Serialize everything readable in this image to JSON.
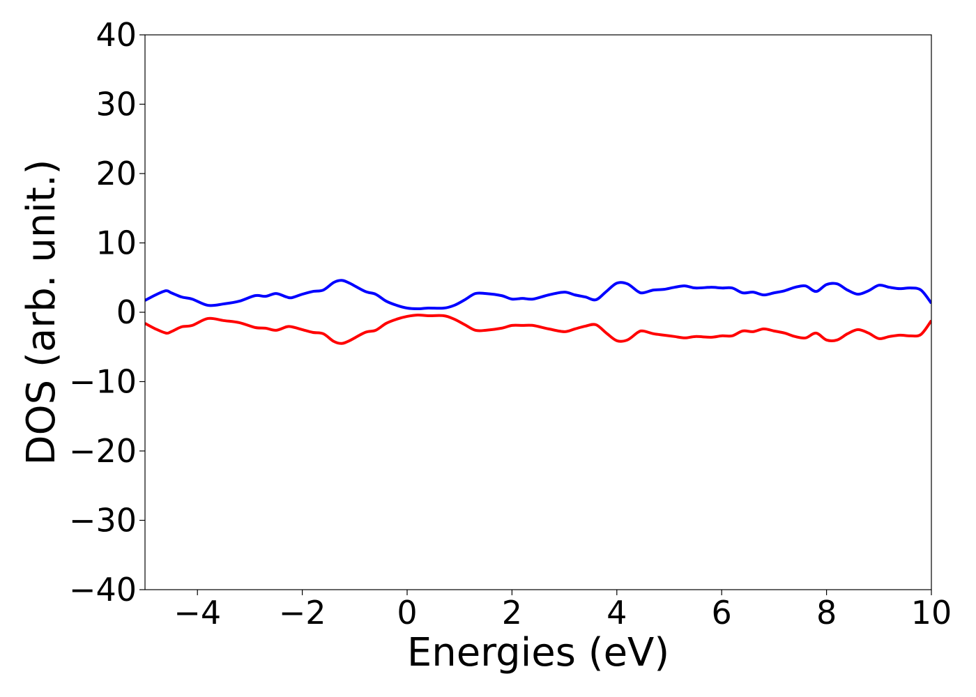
{
  "chart_data": {
    "type": "line",
    "xlabel": "Energies (eV)",
    "ylabel": "DOS (arb. unit.)",
    "xlim": [
      -5,
      10
    ],
    "ylim": [
      -40,
      40
    ],
    "xticks": [
      -4,
      -2,
      0,
      2,
      4,
      6,
      8,
      10
    ],
    "yticks": [
      -40,
      -30,
      -20,
      -10,
      0,
      10,
      20,
      30,
      40
    ],
    "xtick_labels": [
      "−4",
      "−2",
      "0",
      "2",
      "4",
      "6",
      "8",
      "10"
    ],
    "ytick_labels": [
      "−40",
      "−30",
      "−20",
      "−10",
      "0",
      "10",
      "20",
      "30",
      "40"
    ],
    "grid": false,
    "legend": false,
    "series": [
      {
        "color": "#0000ff",
        "x": [
          -5.0,
          -4.8,
          -4.6,
          -4.5,
          -4.3,
          -4.1,
          -3.8,
          -3.5,
          -3.2,
          -2.9,
          -2.7,
          -2.5,
          -2.3,
          -2.2,
          -2.0,
          -1.8,
          -1.6,
          -1.4,
          -1.25,
          -1.1,
          -0.8,
          -0.6,
          -0.4,
          -0.2,
          0.0,
          0.2,
          0.4,
          0.7,
          0.9,
          1.1,
          1.3,
          1.5,
          1.8,
          2.0,
          2.2,
          2.4,
          2.7,
          3.0,
          3.2,
          3.4,
          3.6,
          3.8,
          4.0,
          4.2,
          4.4,
          4.5,
          4.7,
          4.9,
          5.1,
          5.3,
          5.5,
          5.8,
          6.0,
          6.2,
          6.4,
          6.6,
          6.8,
          7.0,
          7.2,
          7.4,
          7.6,
          7.8,
          8.0,
          8.2,
          8.4,
          8.6,
          8.8,
          9.0,
          9.2,
          9.4,
          9.6,
          9.8,
          10.0
        ],
        "y": [
          1.7,
          2.5,
          3.1,
          2.8,
          2.2,
          1.9,
          1.0,
          1.2,
          1.6,
          2.4,
          2.3,
          2.7,
          2.2,
          2.1,
          2.6,
          3.0,
          3.2,
          4.3,
          4.6,
          4.2,
          3.0,
          2.6,
          1.6,
          1.0,
          0.6,
          0.5,
          0.6,
          0.6,
          1.0,
          1.8,
          2.7,
          2.7,
          2.4,
          1.9,
          2.0,
          1.9,
          2.5,
          2.9,
          2.5,
          2.2,
          1.8,
          3.0,
          4.2,
          4.1,
          3.0,
          2.8,
          3.2,
          3.3,
          3.6,
          3.8,
          3.5,
          3.6,
          3.5,
          3.5,
          2.8,
          2.9,
          2.5,
          2.8,
          3.1,
          3.6,
          3.8,
          3.0,
          4.0,
          4.1,
          3.2,
          2.6,
          3.1,
          3.9,
          3.6,
          3.4,
          3.5,
          3.2,
          1.3
        ]
      },
      {
        "color": "#ff0000",
        "x": [
          -5.0,
          -4.8,
          -4.6,
          -4.5,
          -4.3,
          -4.1,
          -3.8,
          -3.5,
          -3.2,
          -2.9,
          -2.7,
          -2.5,
          -2.3,
          -2.2,
          -2.0,
          -1.8,
          -1.6,
          -1.4,
          -1.25,
          -1.1,
          -0.8,
          -0.6,
          -0.4,
          -0.2,
          0.0,
          0.2,
          0.4,
          0.7,
          0.9,
          1.1,
          1.3,
          1.5,
          1.8,
          2.0,
          2.2,
          2.4,
          2.7,
          3.0,
          3.2,
          3.4,
          3.6,
          3.8,
          4.0,
          4.2,
          4.4,
          4.5,
          4.7,
          4.9,
          5.1,
          5.3,
          5.5,
          5.8,
          6.0,
          6.2,
          6.4,
          6.6,
          6.8,
          7.0,
          7.2,
          7.4,
          7.6,
          7.8,
          8.0,
          8.2,
          8.4,
          8.6,
          8.8,
          9.0,
          9.2,
          9.4,
          9.6,
          9.8,
          10.0
        ],
        "y": [
          -1.6,
          -2.4,
          -3.0,
          -2.8,
          -2.1,
          -1.9,
          -0.9,
          -1.2,
          -1.5,
          -2.2,
          -2.3,
          -2.6,
          -2.1,
          -2.1,
          -2.5,
          -2.9,
          -3.1,
          -4.2,
          -4.5,
          -4.1,
          -2.9,
          -2.6,
          -1.6,
          -1.0,
          -0.6,
          -0.4,
          -0.5,
          -0.5,
          -1.0,
          -1.8,
          -2.6,
          -2.6,
          -2.3,
          -1.9,
          -1.9,
          -1.9,
          -2.4,
          -2.8,
          -2.4,
          -2.0,
          -1.8,
          -3.0,
          -4.1,
          -4.0,
          -2.9,
          -2.7,
          -3.1,
          -3.3,
          -3.5,
          -3.7,
          -3.5,
          -3.6,
          -3.4,
          -3.4,
          -2.7,
          -2.8,
          -2.4,
          -2.7,
          -3.0,
          -3.5,
          -3.7,
          -3.0,
          -4.0,
          -4.0,
          -3.1,
          -2.5,
          -3.0,
          -3.8,
          -3.5,
          -3.3,
          -3.4,
          -3.2,
          -1.2
        ]
      }
    ]
  }
}
